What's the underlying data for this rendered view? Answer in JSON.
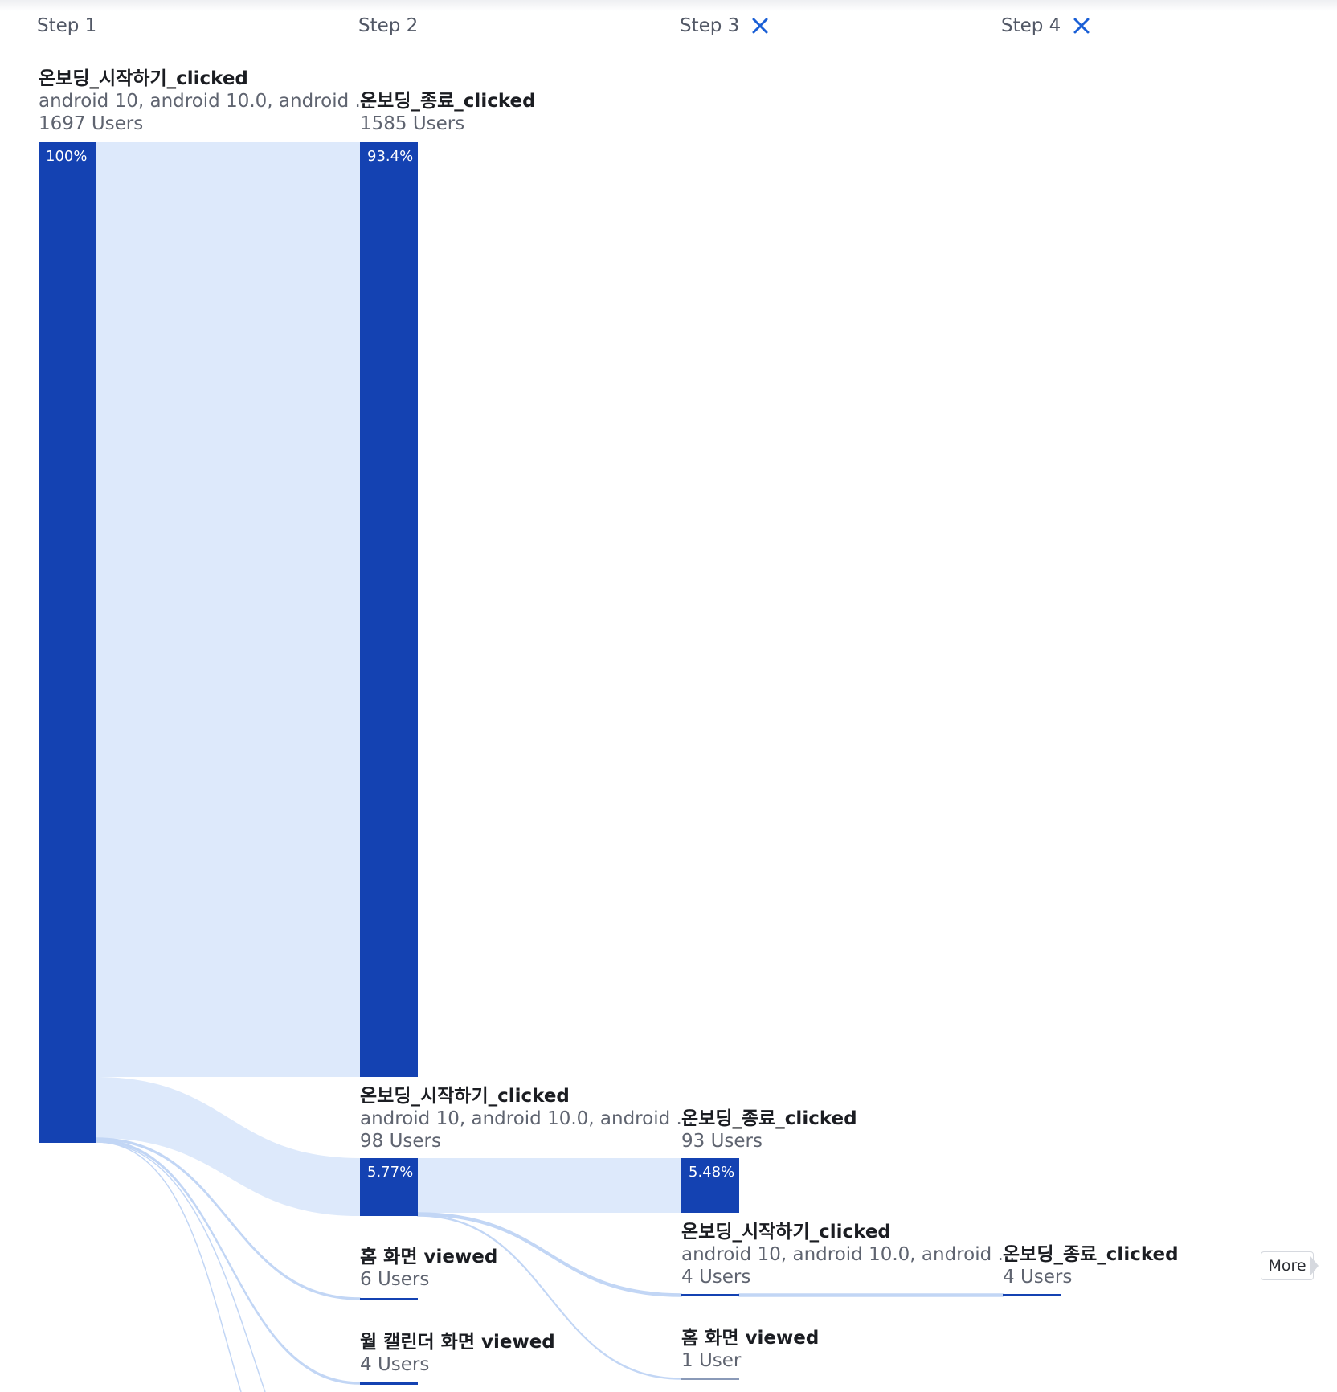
{
  "steps": [
    {
      "label": "Step 1",
      "removable": false
    },
    {
      "label": "Step 2",
      "removable": false
    },
    {
      "label": "Step 3",
      "removable": true
    },
    {
      "label": "Step 4",
      "removable": true
    }
  ],
  "colors": {
    "bar": "#1442b2",
    "flow": "#dde9fb",
    "flow_line": "#c2d6f5",
    "close_icon": "#1a5fd6"
  },
  "more_label": "More",
  "chart_data": {
    "type": "sankey",
    "total_users": 1697,
    "nodes": [
      {
        "id": "s1a",
        "step": 1,
        "name": "온보딩_시작하기_clicked",
        "props": "android 10, android 10.0, android ...",
        "users": 1697,
        "count_text": "1697 Users",
        "pct": "100%"
      },
      {
        "id": "s2a",
        "step": 2,
        "name": "온보딩_종료_clicked",
        "props": "",
        "users": 1585,
        "count_text": "1585 Users",
        "pct": "93.4%"
      },
      {
        "id": "s2b",
        "step": 2,
        "name": "온보딩_시작하기_clicked",
        "props": "android 10, android 10.0, android ...",
        "users": 98,
        "count_text": "98 Users",
        "pct": "5.77%"
      },
      {
        "id": "s2c",
        "step": 2,
        "name": "홈 화면 viewed",
        "props": "",
        "users": 6,
        "count_text": "6 Users",
        "pct": ""
      },
      {
        "id": "s2d",
        "step": 2,
        "name": "월 캘린더 화면 viewed",
        "props": "",
        "users": 4,
        "count_text": "4 Users",
        "pct": ""
      },
      {
        "id": "s3a",
        "step": 3,
        "name": "온보딩_종료_clicked",
        "props": "",
        "users": 93,
        "count_text": "93 Users",
        "pct": "5.48%"
      },
      {
        "id": "s3b",
        "step": 3,
        "name": "온보딩_시작하기_clicked",
        "props": "android 10, android 10.0, android ...",
        "users": 4,
        "count_text": "4 Users",
        "pct": ""
      },
      {
        "id": "s3c",
        "step": 3,
        "name": "홈 화면 viewed",
        "props": "",
        "users": 1,
        "count_text": "1 User",
        "pct": ""
      },
      {
        "id": "s4a",
        "step": 4,
        "name": "온보딩_종료_clicked",
        "props": "",
        "users": 4,
        "count_text": "4 Users",
        "pct": ""
      }
    ],
    "links": [
      {
        "source": "s1a",
        "target": "s2a",
        "users": 1585
      },
      {
        "source": "s1a",
        "target": "s2b",
        "users": 98
      },
      {
        "source": "s1a",
        "target": "s2c",
        "users": 6
      },
      {
        "source": "s1a",
        "target": "s2d",
        "users": 4
      },
      {
        "source": "s2b",
        "target": "s3a",
        "users": 93
      },
      {
        "source": "s2b",
        "target": "s3b",
        "users": 4
      },
      {
        "source": "s2b",
        "target": "s3c",
        "users": 1
      },
      {
        "source": "s3b",
        "target": "s4a",
        "users": 4
      }
    ]
  }
}
